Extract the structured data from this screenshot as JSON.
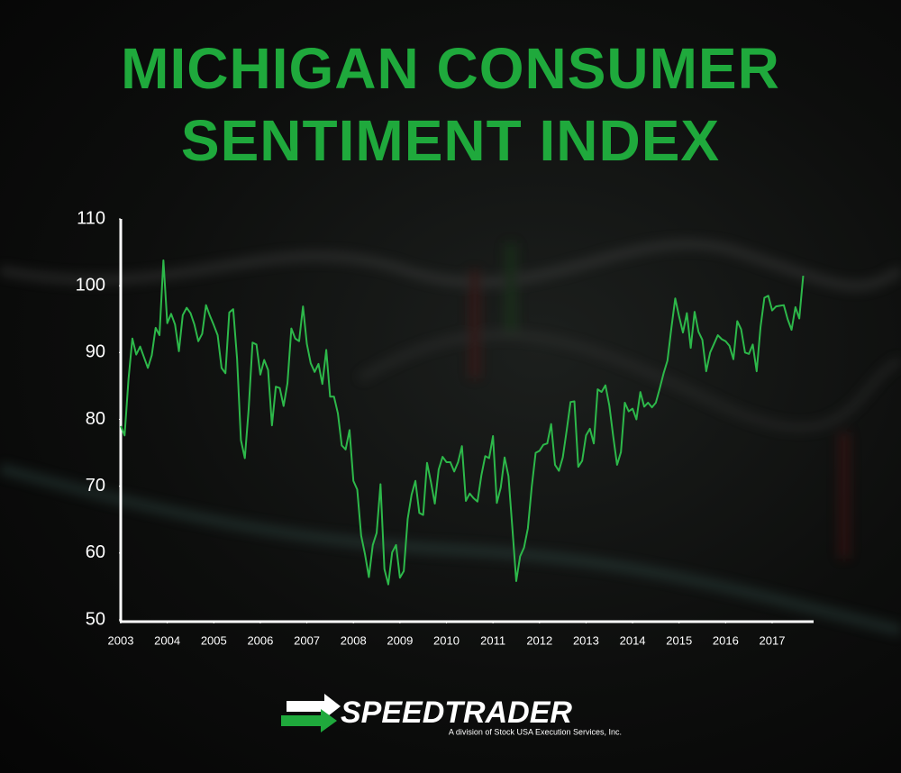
{
  "chart_data": {
    "type": "line",
    "title": "MICHIGAN CONSUMER SENTIMENT INDEX",
    "color": "#2db84a",
    "x": [
      2003,
      2003.083,
      2003.167,
      2003.25,
      2003.333,
      2003.417,
      2003.5,
      2003.583,
      2003.667,
      2003.75,
      2003.833,
      2003.917,
      2004,
      2004.083,
      2004.167,
      2004.25,
      2004.333,
      2004.417,
      2004.5,
      2004.583,
      2004.667,
      2004.75,
      2004.833,
      2004.917,
      2005,
      2005.083,
      2005.167,
      2005.25,
      2005.333,
      2005.417,
      2005.5,
      2005.583,
      2005.667,
      2005.75,
      2005.833,
      2005.917,
      2006,
      2006.083,
      2006.167,
      2006.25,
      2006.333,
      2006.417,
      2006.5,
      2006.583,
      2006.667,
      2006.75,
      2006.833,
      2006.917,
      2007,
      2007.083,
      2007.167,
      2007.25,
      2007.333,
      2007.417,
      2007.5,
      2007.583,
      2007.667,
      2007.75,
      2007.833,
      2007.917,
      2008,
      2008.083,
      2008.167,
      2008.25,
      2008.333,
      2008.417,
      2008.5,
      2008.583,
      2008.667,
      2008.75,
      2008.833,
      2008.917,
      2009,
      2009.083,
      2009.167,
      2009.25,
      2009.333,
      2009.417,
      2009.5,
      2009.583,
      2009.667,
      2009.75,
      2009.833,
      2009.917,
      2010,
      2010.083,
      2010.167,
      2010.25,
      2010.333,
      2010.417,
      2010.5,
      2010.583,
      2010.667,
      2010.75,
      2010.833,
      2010.917,
      2011,
      2011.083,
      2011.167,
      2011.25,
      2011.333,
      2011.417,
      2011.5,
      2011.583,
      2011.667,
      2011.75,
      2011.833,
      2011.917,
      2012,
      2012.083,
      2012.167,
      2012.25,
      2012.333,
      2012.417,
      2012.5,
      2012.583,
      2012.667,
      2012.75,
      2012.833,
      2012.917,
      2013,
      2013.083,
      2013.167,
      2013.25,
      2013.333,
      2013.417,
      2013.5,
      2013.583,
      2013.667,
      2013.75,
      2013.833,
      2013.917,
      2014,
      2014.083,
      2014.167,
      2014.25,
      2014.333,
      2014.417,
      2014.5,
      2014.583,
      2014.667,
      2014.75,
      2014.833,
      2014.917,
      2015,
      2015.083,
      2015.167,
      2015.25,
      2015.333,
      2015.417,
      2015.5,
      2015.583,
      2015.667,
      2015.75,
      2015.833,
      2015.917,
      2016,
      2016.083,
      2016.167,
      2016.25,
      2016.333,
      2016.417,
      2016.5,
      2016.583,
      2016.667,
      2016.75,
      2016.833,
      2016.917,
      2017,
      2017.083,
      2017.167,
      2017.25,
      2017.333,
      2017.417,
      2017.5,
      2017.583,
      2017.667
    ],
    "values": [
      79.0,
      77.6,
      86.0,
      92.1,
      89.7,
      90.9,
      89.3,
      87.7,
      89.6,
      93.7,
      92.6,
      103.8,
      94.4,
      95.8,
      94.2,
      90.2,
      95.6,
      96.7,
      95.9,
      94.2,
      91.7,
      92.8,
      97.1,
      95.5,
      94.1,
      92.6,
      87.7,
      86.9,
      96.0,
      96.5,
      89.1,
      76.9,
      74.2,
      81.6,
      91.5,
      91.2,
      86.7,
      88.9,
      87.4,
      79.1,
      84.9,
      84.7,
      82.0,
      85.4,
      93.6,
      92.1,
      91.7,
      96.9,
      91.3,
      88.4,
      87.1,
      88.3,
      85.3,
      90.4,
      83.4,
      83.4,
      80.9,
      76.1,
      75.5,
      78.4,
      70.8,
      69.5,
      62.6,
      59.8,
      56.4,
      61.2,
      63.0,
      70.3,
      57.6,
      55.3,
      60.1,
      61.2,
      56.3,
      57.3,
      65.1,
      68.7,
      70.8,
      66.0,
      65.7,
      73.5,
      70.6,
      67.4,
      72.5,
      74.4,
      73.6,
      73.6,
      72.2,
      73.6,
      76.0,
      67.8,
      68.9,
      68.2,
      67.7,
      71.6,
      74.5,
      74.2,
      77.5,
      67.5,
      69.8,
      74.3,
      71.5,
      63.7,
      55.8,
      59.5,
      60.8,
      63.7,
      69.9,
      75.0,
      75.3,
      76.2,
      76.4,
      79.3,
      73.2,
      72.3,
      74.3,
      78.3,
      82.6,
      82.7,
      72.9,
      73.8,
      77.6,
      78.6,
      76.4,
      84.5,
      84.1,
      85.1,
      82.1,
      77.5,
      73.2,
      75.1,
      82.5,
      81.2,
      81.6,
      80.0,
      84.1,
      81.9,
      82.5,
      81.8,
      82.5,
      84.6,
      86.9,
      88.8,
      93.6,
      98.1,
      95.4,
      93.0,
      95.9,
      90.7,
      96.1,
      93.1,
      91.9,
      87.2,
      90.0,
      91.3,
      92.6,
      92.0,
      91.7,
      91.0,
      89.0,
      94.7,
      93.5,
      90.0,
      89.8,
      91.2,
      87.2,
      93.8,
      98.2,
      98.5,
      96.3,
      96.9,
      97.0,
      97.1,
      95.0,
      93.4,
      96.8,
      95.1,
      101.5
    ],
    "xlim": [
      2003,
      2017.9
    ],
    "xticks": [
      2003,
      2004,
      2005,
      2006,
      2007,
      2008,
      2009,
      2010,
      2011,
      2012,
      2013,
      2014,
      2015,
      2016,
      2017
    ],
    "ylim": [
      50,
      110
    ],
    "yticks": [
      50,
      60,
      70,
      80,
      90,
      100,
      110
    ],
    "grid": false
  },
  "brand": "SPEEDTRADER",
  "brand_subtitle": "A division of Stock USA Execution Services, Inc."
}
